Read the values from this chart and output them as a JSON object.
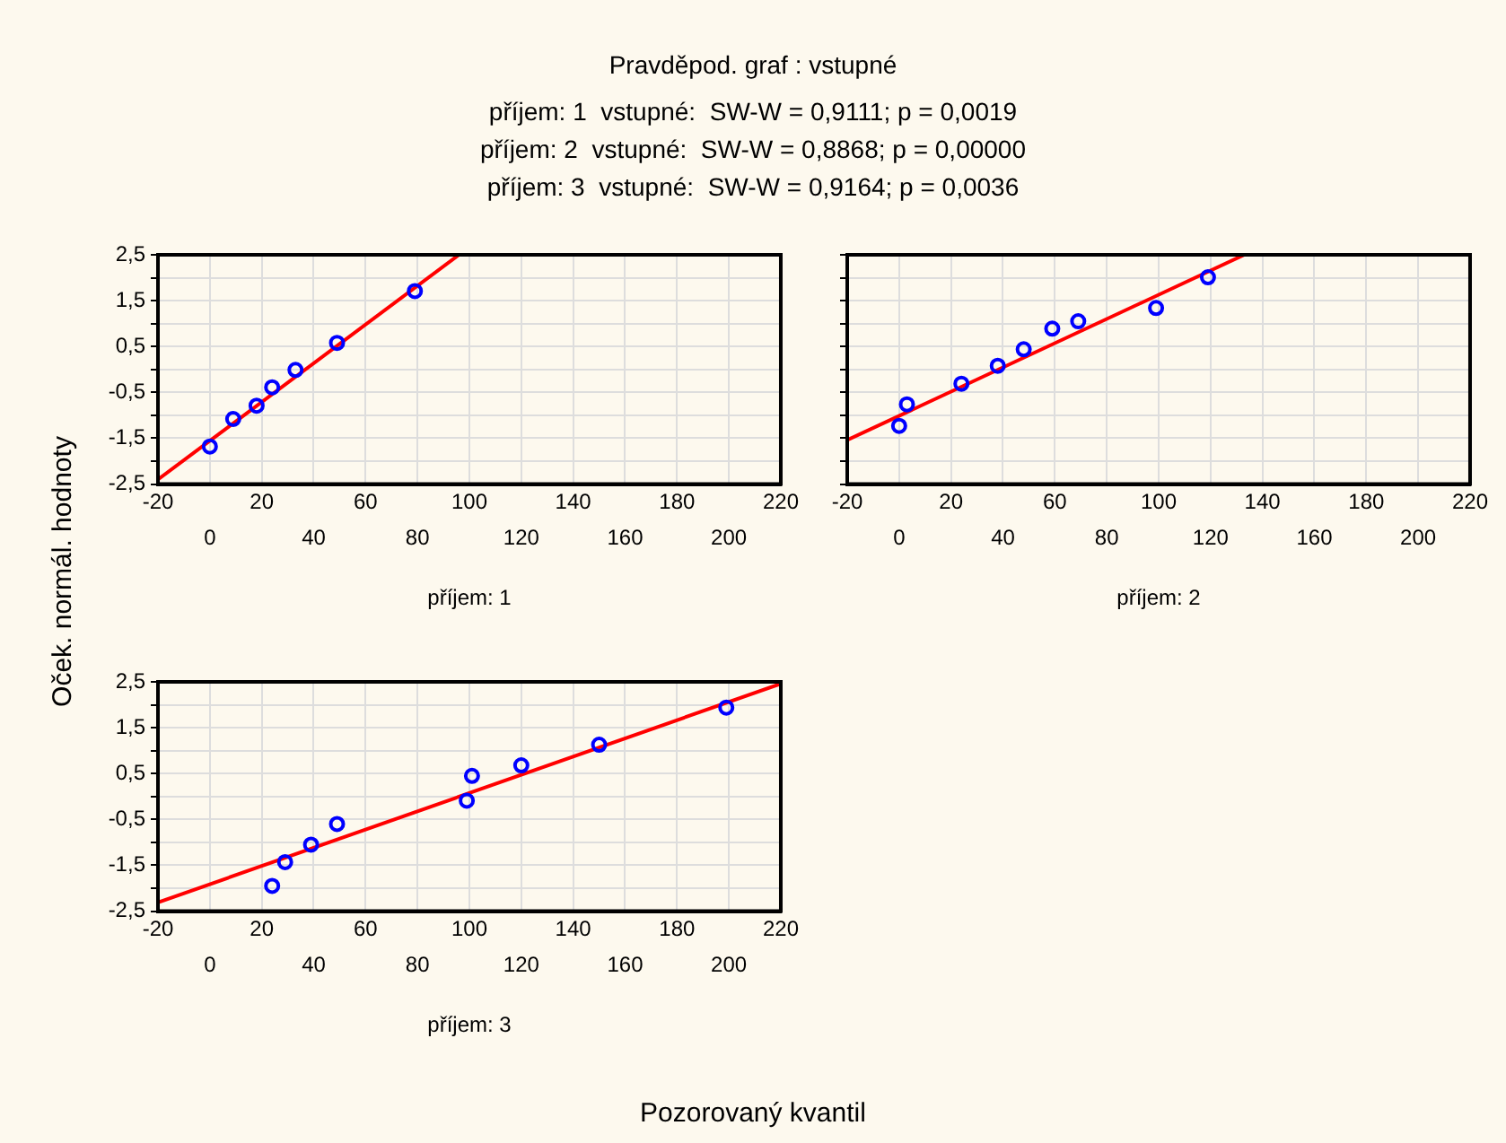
{
  "chart_data": [
    {
      "type": "scatter",
      "title": "Pravděpod. graf : vstupné",
      "subtitle": "příjem: 1  vstupné:  SW-W = 0,9111; p = 0,0019\npříjem: 2  vstupné:  SW-W = 0,8868; p = 0,00000\npříjem: 3  vstupné:  SW-W = 0,9164; p = 0,0036",
      "ylabel": "Oček. normál. hodnoty",
      "xlabel": "příjem: 1",
      "series": [
        {
          "color": "#0000ff",
          "marker": "circle",
          "x": [
            0,
            9,
            18,
            24,
            33,
            49,
            79
          ],
          "values": [
            -1.68,
            -1.08,
            -0.79,
            -0.39,
            -0.01,
            0.58,
            1.71
          ]
        },
        {
          "type": "line",
          "color": "#ff0000",
          "x": [
            -20,
            96
          ],
          "values": [
            -2.4,
            2.5
          ]
        }
      ],
      "xlim": [
        -20,
        220
      ],
      "xticks": [
        -20,
        20,
        60,
        100,
        140,
        180,
        220
      ],
      "x2lim": [
        -20,
        220
      ],
      "x2ticks": [
        0,
        40,
        80,
        120,
        160,
        200
      ],
      "ylim": [
        -2.5,
        2.5
      ],
      "yticks": [
        {
          "value": -2.5,
          "label": "-2,5"
        },
        {
          "value": -2,
          "label": null
        },
        {
          "value": -1.5,
          "label": "-1,5"
        },
        {
          "value": -1,
          "label": null
        },
        {
          "value": -0.5,
          "label": "-0,5"
        },
        {
          "value": 0,
          "label": null
        },
        {
          "value": 0.5,
          "label": "0,5"
        },
        {
          "value": 1,
          "label": null
        },
        {
          "value": 1.5,
          "label": "1,5"
        },
        {
          "value": 2,
          "label": null
        },
        {
          "value": 2.5,
          "label": "2,5"
        }
      ],
      "grid": true,
      "legend": false
    },
    {
      "type": "scatter",
      "xlabel": "příjem: 2",
      "tick_labels": "x",
      "series": [
        {
          "color": "#0000ff",
          "marker": "circle",
          "x": [
            0,
            3,
            24,
            38,
            48,
            59,
            69,
            99,
            119
          ],
          "values": [
            -1.23,
            -0.76,
            -0.31,
            0.08,
            0.44,
            0.89,
            1.05,
            1.34,
            2.01
          ]
        },
        {
          "type": "line",
          "color": "#ff0000",
          "x": [
            -20,
            133
          ],
          "values": [
            -1.54,
            2.5
          ]
        }
      ],
      "xlim": [
        -20,
        220
      ],
      "xticks": [
        -20,
        20,
        60,
        100,
        140,
        180,
        220
      ],
      "x2lim": [
        -20,
        220
      ],
      "x2ticks": [
        0,
        40,
        80,
        120,
        160,
        200
      ],
      "ylim": [
        -2.5,
        2.5
      ],
      "yticks": [
        {
          "value": -2.5,
          "label": null
        },
        {
          "value": -2,
          "label": null
        },
        {
          "value": -1.5,
          "label": null
        },
        {
          "value": -1,
          "label": null
        },
        {
          "value": -0.5,
          "label": null
        },
        {
          "value": 0,
          "label": null
        },
        {
          "value": 0.5,
          "label": null
        },
        {
          "value": 1,
          "label": null
        },
        {
          "value": 1.5,
          "label": null
        },
        {
          "value": 2,
          "label": null
        },
        {
          "value": 2.5,
          "label": null
        }
      ],
      "grid": true,
      "legend": false
    },
    {
      "type": "scatter",
      "xlabel": "příjem: 3",
      "annotations": [
        "Pozorovaný kvantil"
      ],
      "series": [
        {
          "color": "#0000ff",
          "marker": "circle",
          "x": [
            24,
            29,
            39,
            49,
            99,
            101,
            120,
            150,
            199
          ],
          "values": [
            -1.95,
            -1.43,
            -1.05,
            -0.6,
            -0.09,
            0.45,
            0.68,
            1.13,
            1.94
          ]
        },
        {
          "type": "line",
          "color": "#ff0000",
          "x": [
            -20,
            220
          ],
          "values": [
            -2.31,
            2.46
          ]
        }
      ],
      "xlim": [
        -20,
        220
      ],
      "xticks": [
        -20,
        20,
        60,
        100,
        140,
        180,
        220
      ],
      "x2lim": [
        -20,
        220
      ],
      "x2ticks": [
        0,
        40,
        80,
        120,
        160,
        200
      ],
      "ylim": [
        -2.5,
        2.5
      ],
      "yticks": [
        {
          "value": -2.5,
          "label": "-2,5"
        },
        {
          "value": -2,
          "label": null
        },
        {
          "value": -1.5,
          "label": "-1,5"
        },
        {
          "value": -1,
          "label": null
        },
        {
          "value": -0.5,
          "label": "-0,5"
        },
        {
          "value": 0,
          "label": null
        },
        {
          "value": 0.5,
          "label": "0,5"
        },
        {
          "value": 1,
          "label": null
        },
        {
          "value": 1.5,
          "label": "1,5"
        },
        {
          "value": 2,
          "label": null
        },
        {
          "value": 2.5,
          "label": "2,5"
        }
      ],
      "grid": true,
      "legend": false
    }
  ]
}
